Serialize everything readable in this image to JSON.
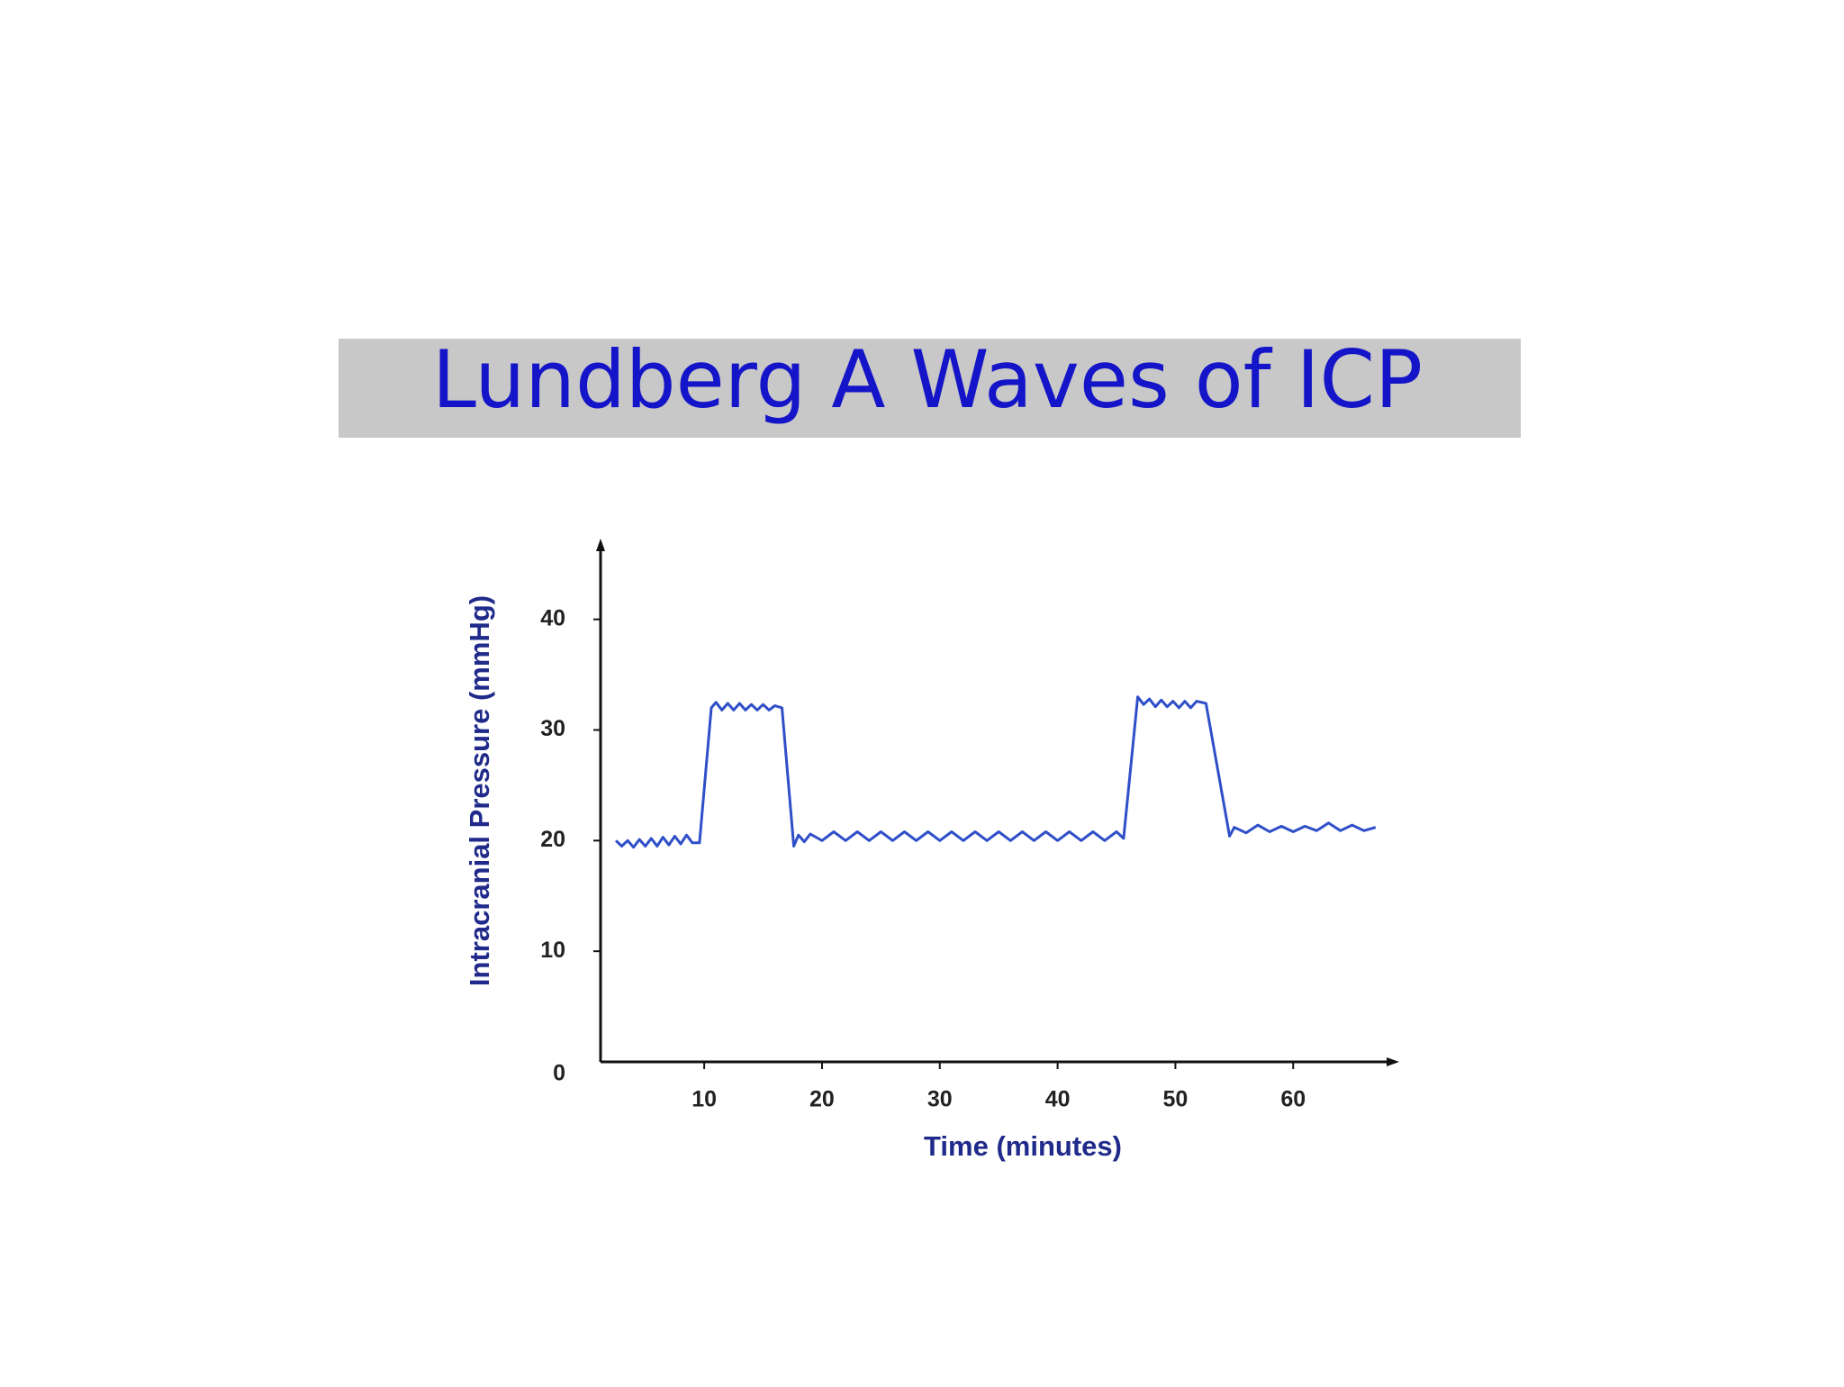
{
  "chart_data": {
    "type": "line",
    "title": "Lundberg A Waves of ICP",
    "y_label": "Intracranial Pressure (mmHg)",
    "x_label": "Time (minutes)",
    "color": "#2f4fc8",
    "grid": false,
    "xlim": [
      1.2,
      69
    ],
    "ylim": [
      0,
      47.3
    ],
    "xticks": [
      10,
      20,
      30,
      40,
      50,
      60
    ],
    "yticks": [
      0,
      10,
      20,
      30,
      40
    ],
    "x": [
      2.5,
      3,
      3.5,
      4,
      4.5,
      5,
      5.5,
      6,
      6.5,
      7,
      7.5,
      8,
      8.5,
      9,
      9.6,
      10.6,
      11,
      11.5,
      12,
      12.5,
      13,
      13.5,
      14,
      14.5,
      15,
      15.5,
      16,
      16.6,
      17.6,
      18,
      18.5,
      19,
      20,
      21,
      22,
      23,
      24,
      25,
      26,
      27,
      28,
      29,
      30,
      31,
      32,
      33,
      34,
      35,
      36,
      37,
      38,
      39,
      40,
      41,
      42,
      43,
      44,
      45,
      45.6,
      46.8,
      47.3,
      47.8,
      48.3,
      48.8,
      49.3,
      49.8,
      50.3,
      50.8,
      51.3,
      51.8,
      52.6,
      54.6,
      55,
      56,
      57,
      58,
      59,
      60,
      61,
      62,
      63,
      64,
      65,
      66,
      67
    ],
    "values": [
      20,
      19.5,
      20,
      19.4,
      20.1,
      19.5,
      20.2,
      19.5,
      20.3,
      19.6,
      20.4,
      19.7,
      20.5,
      19.8,
      19.8,
      32,
      32.5,
      31.8,
      32.4,
      31.8,
      32.4,
      31.8,
      32.3,
      31.8,
      32.3,
      31.8,
      32.2,
      32,
      19.5,
      20.5,
      19.9,
      20.6,
      20,
      20.8,
      20,
      20.8,
      20,
      20.8,
      20,
      20.8,
      20,
      20.8,
      20,
      20.8,
      20,
      20.8,
      20,
      20.8,
      20,
      20.8,
      20,
      20.8,
      20,
      20.8,
      20,
      20.8,
      20,
      20.8,
      20.2,
      33,
      32.3,
      32.8,
      32.1,
      32.7,
      32.1,
      32.6,
      32,
      32.6,
      32,
      32.6,
      32.4,
      20.4,
      21.2,
      20.7,
      21.4,
      20.8,
      21.3,
      20.8,
      21.3,
      20.9,
      21.6,
      20.9,
      21.4,
      20.9,
      21.2
    ]
  }
}
